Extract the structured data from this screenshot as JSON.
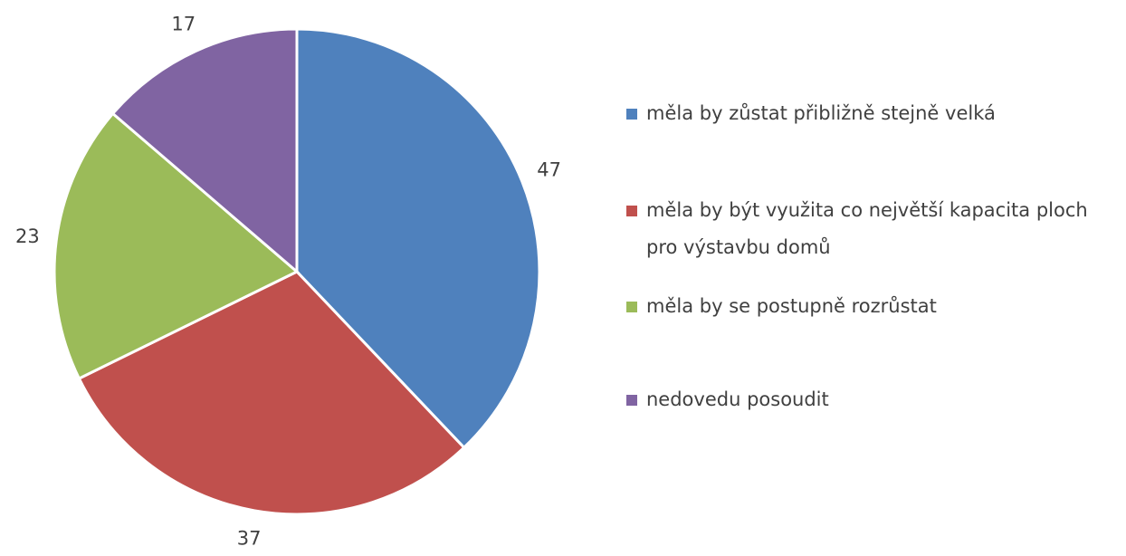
{
  "chart_data": {
    "type": "pie",
    "categories": [
      "měla by zůstat přibližně stejně velká",
      "měla by být využita co největší kapacita ploch pro výstavbu domů",
      "měla by se postupně rozrůstat",
      "nedovedu posoudit"
    ],
    "values": [
      47,
      37,
      23,
      17
    ],
    "colors": [
      "#4f81bd",
      "#c0504d",
      "#9bbb59",
      "#8064a2"
    ],
    "legend": "right"
  }
}
